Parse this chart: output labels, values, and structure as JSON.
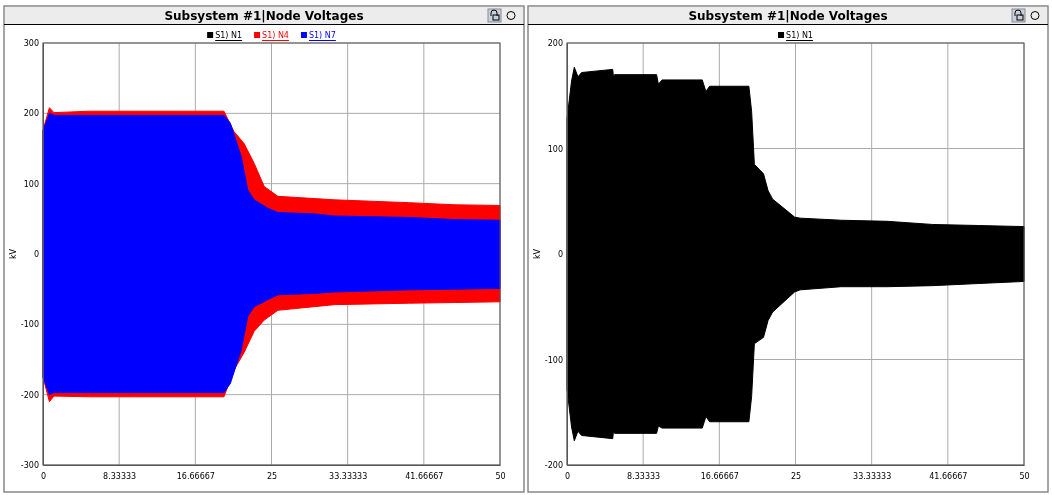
{
  "chart_data": [
    {
      "type": "area",
      "title": "Subsystem #1|Node Voltages",
      "ylabel": "kV",
      "xlim": [
        0,
        50
      ],
      "xticks": [
        0,
        8.33333,
        16.66667,
        25,
        33.33333,
        41.66667,
        50
      ],
      "ylim": [
        -300,
        300
      ],
      "yticks": [
        -300,
        -200,
        -100,
        0,
        100,
        200,
        300
      ],
      "grid": true,
      "legend": "top",
      "series": [
        {
          "name": "S1) N1",
          "color": "#000000"
        },
        {
          "name": "S1) N4",
          "color": "#ff0000",
          "x": [
            0,
            0.7,
            1.2,
            5,
            10,
            15,
            19.8,
            20.9,
            22,
            23.1,
            24.2,
            25.7,
            31.9,
            40,
            45,
            50
          ],
          "values": [
            176,
            208,
            201,
            203,
            203,
            203,
            203,
            174,
            157,
            129,
            96,
            82,
            77,
            73,
            70,
            69
          ]
        },
        {
          "color": "#ff0000",
          "x": [
            0,
            0.7,
            1.2,
            5,
            10,
            15,
            19.8,
            20.9,
            22,
            23.1,
            24.2,
            25.7,
            31.9,
            40,
            45,
            50
          ],
          "values": [
            -175,
            -210,
            -202,
            -203,
            -203,
            -203,
            -203,
            -165,
            -140,
            -110,
            -94,
            -80,
            -72,
            -70,
            -69,
            -68
          ]
        },
        {
          "name": "S1) N7",
          "color": "#0000ff",
          "x": [
            0,
            0.7,
            1.2,
            5,
            10,
            15,
            19.8,
            20.5,
            21.7,
            22.4,
            23.1,
            24.6,
            25.7,
            29.7,
            31.9,
            40,
            45,
            50
          ],
          "values": [
            175,
            200,
            197,
            197,
            197,
            197,
            197,
            186,
            138,
            91,
            77,
            65,
            59,
            57,
            54,
            52,
            49,
            48
          ]
        },
        {
          "color": "#0000ff",
          "x": [
            0,
            0.7,
            1.2,
            5,
            10,
            15,
            19.8,
            20.5,
            21.7,
            22.4,
            23.1,
            24.6,
            25.7,
            29.7,
            31.9,
            40,
            45,
            50
          ],
          "values": [
            -175,
            -200,
            -197,
            -197,
            -197,
            -197,
            -197,
            -184,
            -136,
            -89,
            -75,
            -65,
            -58,
            -56,
            -54,
            -51,
            -50,
            -49
          ]
        }
      ]
    },
    {
      "type": "area",
      "title": "Subsystem #1|Node Voltages",
      "ylabel": "kV",
      "xlim": [
        0,
        50
      ],
      "xticks": [
        0,
        8.33333,
        16.66667,
        25,
        33.33333,
        41.66667,
        50
      ],
      "ylim": [
        -200,
        200
      ],
      "yticks": [
        -200,
        -100,
        0,
        100,
        200
      ],
      "grid": true,
      "legend": "top",
      "series": [
        {
          "name": "S1) N1",
          "color": "#000000",
          "x": [
            0,
            0.5,
            0.8,
            1.2,
            1.6,
            5,
            5.1,
            5.2,
            9.8,
            10,
            10.4,
            14.8,
            15.2,
            15.6,
            19.9,
            20.2,
            20.5,
            21.5,
            22,
            22.5,
            24.9,
            25.5,
            30,
            35,
            40,
            45,
            50
          ],
          "values": [
            128,
            164,
            177,
            168,
            172,
            175,
            167,
            170,
            170,
            161,
            165,
            165,
            154,
            159,
            159,
            135,
            85,
            76,
            60,
            52,
            35,
            34,
            32,
            31,
            28,
            27,
            26
          ]
        },
        {
          "color": "#000000",
          "x": [
            0,
            0.5,
            0.8,
            1.2,
            1.6,
            5,
            5.1,
            5.2,
            9.8,
            10,
            10.4,
            14.8,
            15.2,
            15.6,
            19.9,
            20.2,
            20.5,
            21.5,
            22,
            22.5,
            24.9,
            25.5,
            30,
            35,
            40,
            45,
            50
          ],
          "values": [
            -128,
            -164,
            -177,
            -168,
            -172,
            -175,
            -167,
            -170,
            -170,
            -163,
            -165,
            -165,
            -154,
            -159,
            -159,
            -135,
            -85,
            -79,
            -63,
            -55,
            -36,
            -34,
            -31,
            -31,
            -30,
            -28,
            -26
          ]
        }
      ]
    }
  ]
}
